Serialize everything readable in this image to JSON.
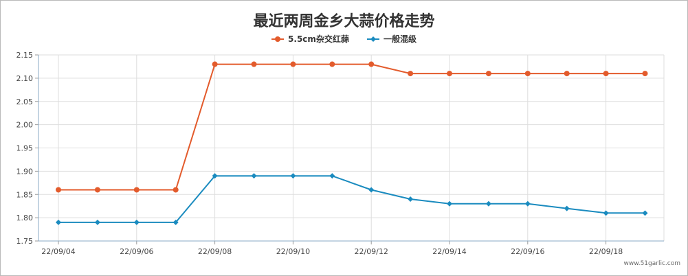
{
  "chart_data": {
    "type": "line",
    "title": "最近两周金乡大蒜价格走势",
    "categories": [
      "22/09/04",
      "22/09/05",
      "22/09/06",
      "22/09/07",
      "22/09/08",
      "22/09/09",
      "22/09/10",
      "22/09/11",
      "22/09/12",
      "22/09/13",
      "22/09/14",
      "22/09/15",
      "22/09/16",
      "22/09/17",
      "22/09/18",
      "22/09/19"
    ],
    "x_tick_labels": [
      "22/09/04",
      "22/09/06",
      "22/09/08",
      "22/09/10",
      "22/09/12",
      "22/09/14",
      "22/09/16",
      "22/09/18"
    ],
    "y_ticks": [
      "1.75",
      "1.80",
      "1.85",
      "1.90",
      "1.95",
      "2.00",
      "2.05",
      "2.10",
      "2.15"
    ],
    "ylim": [
      1.75,
      2.15
    ],
    "grid": true,
    "legend_position": "top-center",
    "series": [
      {
        "name": "5.5cm杂交红蒜",
        "color": "#e35b2c",
        "marker": "circle",
        "values": [
          1.86,
          1.86,
          1.86,
          1.86,
          2.13,
          2.13,
          2.13,
          2.13,
          2.13,
          2.11,
          2.11,
          2.11,
          2.11,
          2.11,
          2.11,
          2.11
        ]
      },
      {
        "name": "一般混级",
        "color": "#1a8bbf",
        "marker": "diamond",
        "values": [
          1.79,
          1.79,
          1.79,
          1.79,
          1.89,
          1.89,
          1.89,
          1.89,
          1.86,
          1.84,
          1.83,
          1.83,
          1.83,
          1.82,
          1.81,
          1.81
        ]
      }
    ]
  },
  "watermark": "www.51garlic.com"
}
